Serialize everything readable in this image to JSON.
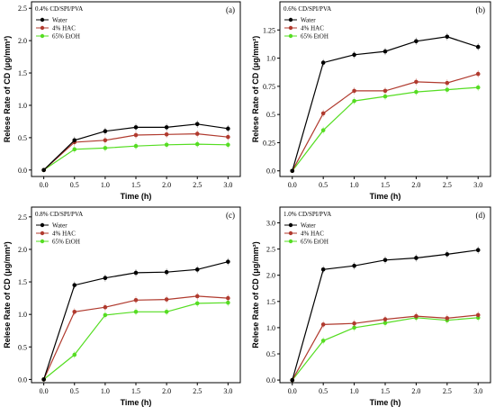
{
  "chart_data": [
    {
      "type": "line",
      "panel": "(a)",
      "title": "0.4% CD/SPI/PVA",
      "xlabel": "Time (h)",
      "ylabel": "Relese Rate of CD (μg/mm²)",
      "x": [
        0,
        0.5,
        1,
        1.5,
        2,
        2.5,
        3
      ],
      "xlim": [
        -0.2,
        3.2
      ],
      "ylim": [
        -0.1,
        2.6
      ],
      "xticks": [
        "0.0",
        "0.5",
        "1.0",
        "1.5",
        "2.0",
        "2.5",
        "3.0"
      ],
      "yticks": [
        "0.0",
        "0.5",
        "1.0",
        "1.5",
        "2.0",
        "2.5"
      ],
      "legend_position": "top-left",
      "series": [
        {
          "name": "Water",
          "color": "#000000",
          "values": [
            0,
            0.46,
            0.6,
            0.66,
            0.66,
            0.71,
            0.64
          ]
        },
        {
          "name": "4% HAC",
          "color": "#b03a2e",
          "values": [
            0,
            0.43,
            0.46,
            0.54,
            0.55,
            0.56,
            0.51
          ]
        },
        {
          "name": "65% EtOH",
          "color": "#55dd22",
          "values": [
            0,
            0.32,
            0.34,
            0.37,
            0.39,
            0.4,
            0.39
          ]
        }
      ]
    },
    {
      "type": "line",
      "panel": "(b)",
      "title": "0.6% CD/SPI/PVA",
      "xlabel": "Time (h)",
      "ylabel": "Relese Rate of CD (μg/mm²)",
      "x": [
        0,
        0.5,
        1,
        1.5,
        2,
        2.5,
        3
      ],
      "xlim": [
        -0.2,
        3.2
      ],
      "ylim": [
        -0.05,
        1.5
      ],
      "xticks": [
        "0.0",
        "0.5",
        "1.0",
        "1.5",
        "2.0",
        "2.5",
        "3.0"
      ],
      "yticks": [
        "0.0",
        "0.25",
        "0.5",
        "0.75",
        "1.0",
        "1.25"
      ],
      "legend_position": "top-left",
      "series": [
        {
          "name": "Water",
          "color": "#000000",
          "values": [
            0,
            0.96,
            1.03,
            1.06,
            1.15,
            1.19,
            1.1
          ]
        },
        {
          "name": "4% HAC",
          "color": "#b03a2e",
          "values": [
            0,
            0.51,
            0.71,
            0.71,
            0.79,
            0.78,
            0.86
          ]
        },
        {
          "name": "65% EtOH",
          "color": "#55dd22",
          "values": [
            0,
            0.36,
            0.62,
            0.66,
            0.7,
            0.72,
            0.74
          ]
        }
      ]
    },
    {
      "type": "line",
      "panel": "(c)",
      "title": "0.8% CD/SPI/PVA",
      "xlabel": "Time (h)",
      "ylabel": "Relese Rate of CD (μg/mm²)",
      "x": [
        0,
        0.5,
        1,
        1.5,
        2,
        2.5,
        3
      ],
      "xlim": [
        -0.2,
        3.2
      ],
      "ylim": [
        -0.05,
        2.65
      ],
      "xticks": [
        "0.0",
        "0.5",
        "1.0",
        "1.5",
        "2.0",
        "2.5",
        "3.0"
      ],
      "yticks": [
        "0.0",
        "0.5",
        "1.0",
        "1.5",
        "2.0",
        "2.5"
      ],
      "legend_position": "top-left",
      "series": [
        {
          "name": "Water",
          "color": "#000000",
          "values": [
            0,
            1.45,
            1.56,
            1.64,
            1.65,
            1.69,
            1.81
          ]
        },
        {
          "name": "4% HAC",
          "color": "#b03a2e",
          "values": [
            0,
            1.04,
            1.11,
            1.22,
            1.23,
            1.28,
            1.25
          ]
        },
        {
          "name": "65% EtOH",
          "color": "#55dd22",
          "values": [
            0,
            0.38,
            0.99,
            1.04,
            1.04,
            1.17,
            1.18
          ]
        }
      ]
    },
    {
      "type": "line",
      "panel": "(d)",
      "title": "1.0% CD/SPI/PVA",
      "xlabel": "Time (h)",
      "ylabel": "Relese Rate of CD (μg/mm²)",
      "x": [
        0,
        0.5,
        1,
        1.5,
        2,
        2.5,
        3
      ],
      "xlim": [
        -0.2,
        3.2
      ],
      "ylim": [
        -0.05,
        3.3
      ],
      "xticks": [
        "0.0",
        "0.5",
        "1.0",
        "1.5",
        "2.0",
        "2.5",
        "3.0"
      ],
      "yticks": [
        "0.0",
        "0.5",
        "1.0",
        "1.5",
        "2.0",
        "2.5",
        "3.0"
      ],
      "legend_position": "top-left",
      "series": [
        {
          "name": "Water",
          "color": "#000000",
          "values": [
            0,
            2.11,
            2.18,
            2.29,
            2.33,
            2.4,
            2.48
          ]
        },
        {
          "name": "4% HAC",
          "color": "#b03a2e",
          "values": [
            0,
            1.06,
            1.08,
            1.16,
            1.22,
            1.18,
            1.24
          ]
        },
        {
          "name": "65% EtOH",
          "color": "#55dd22",
          "values": [
            0,
            0.75,
            1.0,
            1.09,
            1.19,
            1.14,
            1.19
          ]
        }
      ]
    }
  ]
}
